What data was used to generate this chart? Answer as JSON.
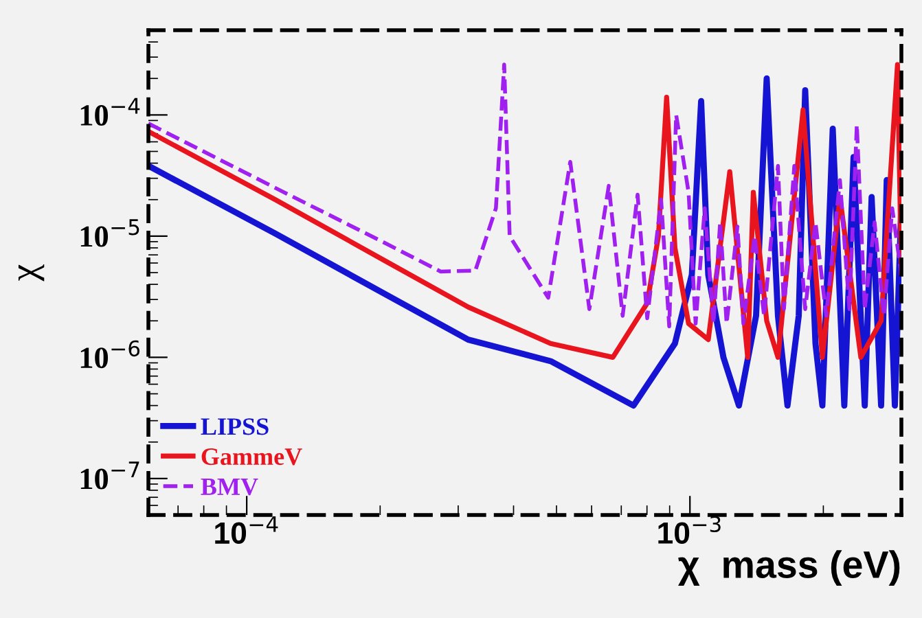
{
  "chart_data": {
    "type": "line",
    "xlabel": "χ  mass (eV)",
    "ylabel": "χ",
    "log": "xy",
    "grid": false,
    "legend": "bottom left",
    "xlim": [
      6e-05,
      0.003
    ],
    "ylim": [
      5e-08,
      0.0005
    ],
    "xticks": [
      {
        "value": 0.0001,
        "label": "10$^{−4}$"
      },
      {
        "value": 0.001,
        "label": "10$^{−3}$"
      }
    ],
    "yticks": [
      {
        "value": 1e-07,
        "label": "10$^{−7}$"
      },
      {
        "value": 1e-06,
        "label": "10$^{−6}$"
      },
      {
        "value": 1e-05,
        "label": "10$^{−5}$"
      },
      {
        "value": 0.0001,
        "label": "10$^{−4}$"
      }
    ],
    "series": [
      {
        "name": "LIPSS",
        "color": "#1414d2",
        "line_style": "solid",
        "x": [
          6e-05,
          0.000116,
          0.000206,
          0.000316,
          0.000485,
          0.000746,
          0.000925,
          0.00101,
          0.00106,
          0.0011,
          0.00119,
          0.00129,
          0.00141,
          0.00149,
          0.00158,
          0.00166,
          0.00176,
          0.00182,
          0.00192,
          0.00199,
          0.0021,
          0.00223,
          0.00234,
          0.00248,
          0.00257,
          0.0027,
          0.00278,
          0.0029,
          0.003
        ],
        "values": [
          3.8e-05,
          1.05e-05,
          3.3e-06,
          1.4e-06,
          9.3e-07,
          4e-07,
          1.3e-06,
          4.8e-06,
          0.00013,
          4.8e-06,
          1e-06,
          4e-07,
          2.2e-06,
          0.0002,
          2.2e-06,
          4e-07,
          2.2e-06,
          0.00016,
          1.3e-06,
          4e-07,
          7.7e-05,
          4e-07,
          4.5e-05,
          4e-07,
          2.1e-05,
          4e-07,
          2.9e-05,
          4e-07,
          1.9e-05
        ]
      },
      {
        "name": "GammeV",
        "color": "#e8141e",
        "line_style": "solid",
        "x": [
          6e-05,
          0.000116,
          0.000206,
          0.000316,
          0.000485,
          0.00067,
          0.000801,
          0.000849,
          0.000886,
          0.000925,
          0.000993,
          0.0011,
          0.00123,
          0.00135,
          0.00139,
          0.00149,
          0.00158,
          0.0018,
          0.00199,
          0.00218,
          0.00243,
          0.0027,
          0.00294,
          0.003
        ],
        "values": [
          7.3e-05,
          2e-05,
          6.2e-06,
          2.6e-06,
          1.3e-06,
          1e-06,
          2.8e-06,
          1e-05,
          0.00014,
          8e-06,
          1.9e-06,
          1.4e-06,
          3.4e-05,
          1e-06,
          2.3e-05,
          2e-06,
          1e-06,
          0.00011,
          1e-06,
          2.1e-05,
          1e-06,
          2e-06,
          0.00026,
          5e-06
        ]
      },
      {
        "name": "BMV",
        "color": "#a020f0",
        "line_style": "dashed",
        "x": [
          6e-05,
          0.000116,
          0.000206,
          0.000274,
          0.000328,
          0.000365,
          0.000381,
          0.000392,
          0.000479,
          0.000537,
          0.000593,
          0.000656,
          0.000705,
          0.000762,
          0.000801,
          0.000861,
          0.000898,
          0.000931,
          0.000993,
          0.00103,
          0.00108,
          0.00113,
          0.00117,
          0.00121,
          0.00128,
          0.00132,
          0.0014,
          0.00147,
          0.00158,
          0.00163,
          0.00172,
          0.00182,
          0.00192,
          0.00203,
          0.00218,
          0.00229,
          0.00238,
          0.00248,
          0.00261,
          0.00274,
          0.00286,
          0.003
        ],
        "values": [
          8.5e-05,
          2.5e-05,
          8.7e-06,
          5.1e-06,
          5.2e-06,
          1.7e-05,
          0.00026,
          1e-05,
          3.1e-06,
          4.1e-05,
          2.5e-06,
          2.6e-05,
          2.2e-06,
          2.2e-05,
          2.1e-06,
          2e-05,
          1.8e-06,
          0.0001,
          2.3e-05,
          1.9e-06,
          1.7e-05,
          1.9e-06,
          1.3e-05,
          1.9e-06,
          1.2e-05,
          1.9e-06,
          1e-05,
          2.2e-06,
          3.8e-05,
          2.5e-06,
          3.8e-05,
          2.5e-06,
          1.3e-05,
          2.2e-06,
          2.9e-05,
          2.5e-06,
          8.3e-05,
          2.5e-06,
          1.3e-05,
          2.2e-06,
          1.7e-05,
          4.8e-06
        ]
      }
    ]
  }
}
